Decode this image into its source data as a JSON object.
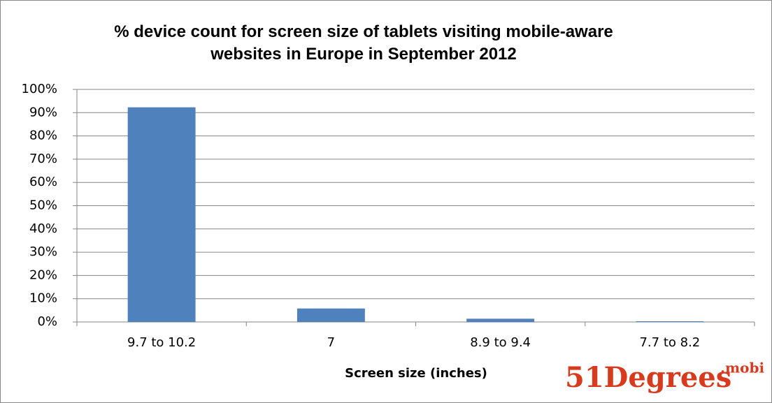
{
  "chart_data": {
    "type": "bar",
    "title": "% device count for screen size of tablets visiting mobile-aware websites in Europe in September 2012",
    "x_label": "Screen size (inches)",
    "logo": "51Degrees",
    "logo_suffix": ".mobi",
    "categories": [
      "9.7 to 10.2",
      "7",
      "8.9 to 9.4",
      "7.7 to 8.2"
    ],
    "values": [
      92.3,
      5.8,
      1.4,
      0.3
    ],
    "color": "#4f81bd",
    "ylim": [
      0,
      100
    ],
    "yticks": [
      {
        "value": 0,
        "label": "0%"
      },
      {
        "value": 10,
        "label": "10%"
      },
      {
        "value": 20,
        "label": "20%"
      },
      {
        "value": 30,
        "label": "30%"
      },
      {
        "value": 40,
        "label": "40%"
      },
      {
        "value": 50,
        "label": "50%"
      },
      {
        "value": 60,
        "label": "60%"
      },
      {
        "value": 70,
        "label": "70%"
      },
      {
        "value": 80,
        "label": "80%"
      },
      {
        "value": 90,
        "label": "90%"
      },
      {
        "value": 100,
        "label": "100%"
      }
    ],
    "grid": true
  }
}
